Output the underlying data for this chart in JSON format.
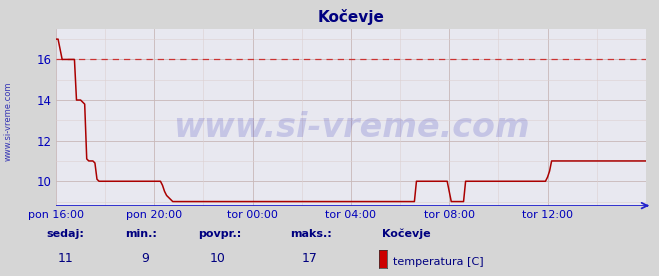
{
  "title": "Kočevje",
  "title_color": "#000080",
  "title_fontsize": 11,
  "bg_color": "#d6d6d6",
  "plot_bg_color": "#e8e8f0",
  "grid_color_major": "#c8b8b8",
  "grid_color_minor": "#ddd0d0",
  "line_color": "#aa0000",
  "dashed_line_color": "#cc3333",
  "dashed_line_value": 16,
  "x_axis_color": "#0000bb",
  "y_axis_color": "#0000bb",
  "left_label_color": "#0000aa",
  "left_label": "www.si-vreme.com",
  "watermark_text": "www.si-vreme.com",
  "watermark_color": "#0000aa",
  "watermark_alpha": 0.15,
  "ylabel_ticks": [
    10,
    12,
    14,
    16
  ],
  "ylim": [
    8.8,
    17.5
  ],
  "xlim_start": 0,
  "xlim_end": 288,
  "xtick_labels": [
    "pon 16:00",
    "pon 20:00",
    "tor 00:00",
    "tor 04:00",
    "tor 08:00",
    "tor 12:00"
  ],
  "xtick_positions": [
    0,
    48,
    96,
    144,
    192,
    240
  ],
  "sedaj_label": "sedaj:",
  "min_label": "min.:",
  "povpr_label": "povpr.:",
  "maks_label": "maks.:",
  "sedaj_val": "11",
  "min_val": "9",
  "povpr_val": "10",
  "maks_val": "17",
  "station_name": "Kočevje",
  "legend_label": "temperatura [C]",
  "legend_color": "#cc0000",
  "stat_color": "#000080",
  "stat_val_color": "#000080",
  "figsize": [
    6.59,
    2.76
  ],
  "dpi": 100,
  "temp_data": [
    17,
    17,
    16.5,
    16,
    16,
    16,
    16,
    16,
    16,
    16,
    14,
    14,
    14,
    13.9,
    13.8,
    11.1,
    11,
    11,
    11,
    10.9,
    10.1,
    10,
    10,
    10,
    10,
    10,
    10,
    10,
    10,
    10,
    10,
    10,
    10,
    10,
    10,
    10,
    10,
    10,
    10,
    10,
    10,
    10,
    10,
    10,
    10,
    10,
    10,
    10,
    10,
    10,
    10,
    10,
    9.8,
    9.5,
    9.3,
    9.2,
    9.1,
    9.0,
    9.0,
    9.0,
    9.0,
    9.0,
    9.0,
    9.0,
    9.0,
    9.0,
    9.0,
    9.0,
    9.0,
    9.0,
    9.0,
    9.0,
    9.0,
    9.0,
    9.0,
    9.0,
    9.0,
    9.0,
    9.0,
    9.0,
    9.0,
    9.0,
    9.0,
    9.0,
    9.0,
    9.0,
    9.0,
    9.0,
    9.0,
    9.0,
    9.0,
    9.0,
    9.0,
    9.0,
    9.0,
    9.0,
    9.0,
    9.0,
    9.0,
    9.0,
    9.0,
    9.0,
    9.0,
    9.0,
    9.0,
    9.0,
    9.0,
    9.0,
    9.0,
    9.0,
    9.0,
    9.0,
    9.0,
    9.0,
    9.0,
    9.0,
    9.0,
    9.0,
    9.0,
    9.0,
    9.0,
    9.0,
    9.0,
    9.0,
    9.0,
    9.0,
    9.0,
    9.0,
    9.0,
    9.0,
    9.0,
    9.0,
    9.0,
    9.0,
    9.0,
    9.0,
    9.0,
    9.0,
    9.0,
    9.0,
    9.0,
    9.0,
    9.0,
    9.0,
    9.0,
    9.0,
    9.0,
    9.0,
    9.0,
    9.0,
    9.0,
    9.0,
    9.0,
    9.0,
    9.0,
    9.0,
    9.0,
    9.0,
    9.0,
    9.0,
    9.0,
    9.0,
    9.0,
    9.0,
    9.0,
    9.0,
    9.0,
    9.0,
    9.0,
    9.0,
    9.0,
    9.0,
    9.0,
    9.0,
    9.0,
    9.0,
    10,
    10,
    10,
    10,
    10,
    10,
    10,
    10,
    10,
    10,
    10,
    10,
    10,
    10,
    10,
    10,
    9.5,
    9.0,
    9.0,
    9.0,
    9.0,
    9.0,
    9.0,
    9.0,
    10,
    10,
    10,
    10,
    10,
    10,
    10,
    10,
    10,
    10,
    10,
    10,
    10,
    10,
    10,
    10,
    10,
    10,
    10,
    10,
    10,
    10,
    10,
    10,
    10,
    10,
    10,
    10,
    10,
    10,
    10,
    10,
    10,
    10,
    10,
    10,
    10,
    10,
    10,
    10,
    10.2,
    10.5,
    11,
    11,
    11,
    11,
    11,
    11,
    11,
    11,
    11,
    11,
    11,
    11,
    11,
    11,
    11,
    11,
    11,
    11,
    11,
    11,
    11,
    11,
    11,
    11,
    11,
    11,
    11,
    11,
    11,
    11,
    11,
    11,
    11,
    11,
    11,
    11,
    11,
    11,
    11,
    11,
    11,
    11,
    11,
    11,
    11,
    11,
    11
  ]
}
